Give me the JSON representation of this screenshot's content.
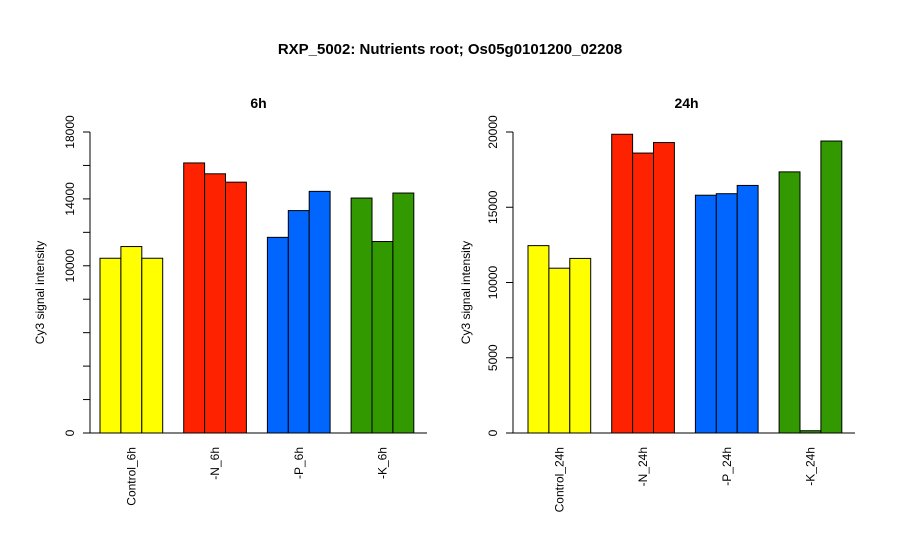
{
  "figure": {
    "title": "RXP_5002: Nutrients root; Os05g0101200_02208"
  },
  "chart_data": [
    {
      "type": "bar",
      "title": "6h",
      "ylabel": "Cy3 signal intensity",
      "xlabel": "",
      "ylim": [
        0,
        18000
      ],
      "yticks": [
        0,
        10000,
        14000,
        18000
      ],
      "yticks_minor": [
        2000,
        4000,
        6000,
        8000,
        12000,
        16000
      ],
      "groups": [
        {
          "label": "Control_6h",
          "color": "#ffff00",
          "values": [
            10450,
            11150,
            10450
          ]
        },
        {
          "label": "-N_6h",
          "color": "#ff2200",
          "values": [
            16150,
            15500,
            15000
          ]
        },
        {
          "label": "-P_6h",
          "color": "#0066ff",
          "values": [
            11700,
            13300,
            14450
          ]
        },
        {
          "label": "-K_6h",
          "color": "#339900",
          "values": [
            14050,
            11450,
            14350
          ]
        }
      ]
    },
    {
      "type": "bar",
      "title": "24h",
      "ylabel": "Cy3 signal intensity",
      "xlabel": "",
      "ylim": [
        0,
        20000
      ],
      "yticks": [
        0,
        5000,
        10000,
        15000,
        20000
      ],
      "yticks_minor": [],
      "groups": [
        {
          "label": "Control_24h",
          "color": "#ffff00",
          "values": [
            12450,
            10950,
            11600
          ]
        },
        {
          "label": "-N_24h",
          "color": "#ff2200",
          "values": [
            19850,
            18600,
            19300
          ]
        },
        {
          "label": "-P_24h",
          "color": "#0066ff",
          "values": [
            15800,
            15900,
            16450
          ]
        },
        {
          "label": "-K_24h",
          "color": "#339900",
          "values": [
            17350,
            150,
            19400
          ]
        }
      ]
    }
  ]
}
